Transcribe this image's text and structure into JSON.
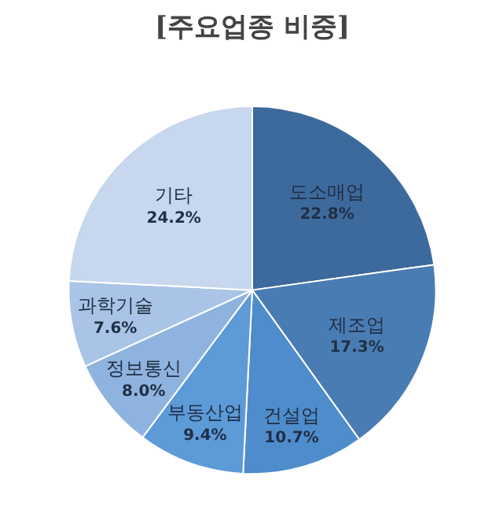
{
  "chart_data": {
    "type": "pie",
    "title": "[주요업종 비중]",
    "categories": [
      "도소매업",
      "제조업",
      "건설업",
      "부동산업",
      "정보통신",
      "과학기술",
      "기타"
    ],
    "values": [
      22.8,
      17.3,
      10.7,
      9.4,
      8.0,
      7.6,
      24.2
    ],
    "value_labels": [
      "22.8%",
      "17.3%",
      "10.7%",
      "9.4%",
      "8.0%",
      "7.6%",
      "24.2%"
    ],
    "colors": [
      "#3d6a9c",
      "#4a7cb4",
      "#4f8ccc",
      "#5d9ad8",
      "#8fb3df",
      "#a9c4e6",
      "#c6d7ee"
    ],
    "legend": false
  }
}
